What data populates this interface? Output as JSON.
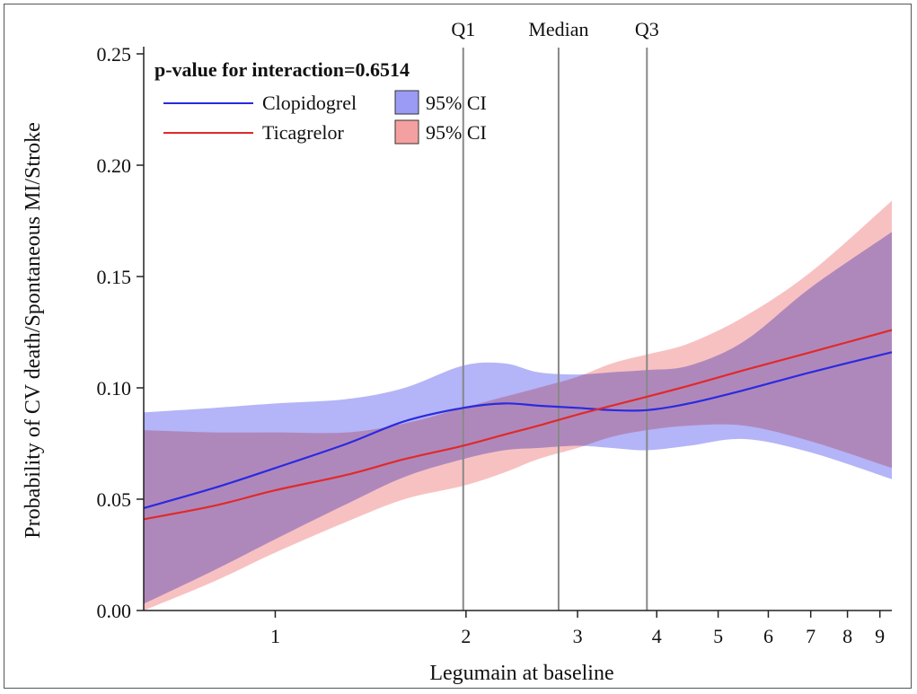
{
  "chart_data": {
    "type": "line",
    "x_scale": "log",
    "xlabel": "Legumain at baseline",
    "ylabel": "Probability of CV death/Spontaneous MI/Stroke",
    "xlim": [
      0.62,
      9.4
    ],
    "ylim": [
      0,
      0.25
    ],
    "x_ticks": [
      1,
      2,
      3,
      4,
      5,
      6,
      7,
      8,
      9
    ],
    "y_ticks": [
      0.0,
      0.05,
      0.1,
      0.15,
      0.2,
      0.25
    ],
    "y_tick_labels": [
      "0.00",
      "0.05",
      "0.10",
      "0.15",
      "0.20",
      "0.25"
    ],
    "grid": false,
    "legend_position": "top-left",
    "annotation": "p-value for interaction=0.6514",
    "reference_lines": [
      {
        "label": "Q1",
        "x": 1.98
      },
      {
        "label": "Median",
        "x": 2.8
      },
      {
        "label": "Q3",
        "x": 3.86
      }
    ],
    "series": [
      {
        "name": "Clopidogrel",
        "ci_name": "95% CI",
        "line_color": "#2a2ae0",
        "band_color": "#9b9bf5",
        "x": [
          0.62,
          0.8,
          1.0,
          1.3,
          1.6,
          1.98,
          2.3,
          2.6,
          3.0,
          3.4,
          3.86,
          4.5,
          5.5,
          7.0,
          9.4
        ],
        "y": [
          0.046,
          0.055,
          0.064,
          0.075,
          0.085,
          0.091,
          0.093,
          0.092,
          0.091,
          0.09,
          0.09,
          0.093,
          0.099,
          0.107,
          0.116
        ],
        "lower": [
          0.003,
          0.018,
          0.032,
          0.048,
          0.06,
          0.068,
          0.072,
          0.073,
          0.074,
          0.073,
          0.072,
          0.074,
          0.077,
          0.071,
          0.059
        ],
        "upper": [
          0.089,
          0.091,
          0.093,
          0.095,
          0.1,
          0.11,
          0.111,
          0.107,
          0.106,
          0.107,
          0.108,
          0.11,
          0.121,
          0.145,
          0.17
        ]
      },
      {
        "name": "Ticagrelor",
        "ci_name": "95% CI",
        "line_color": "#e02a2a",
        "band_color": "#f5a0a0",
        "x": [
          0.62,
          0.8,
          1.0,
          1.3,
          1.6,
          1.98,
          2.3,
          2.6,
          3.0,
          3.4,
          3.86,
          4.5,
          5.5,
          7.0,
          9.4
        ],
        "y": [
          0.041,
          0.047,
          0.054,
          0.061,
          0.068,
          0.074,
          0.079,
          0.083,
          0.088,
          0.092,
          0.096,
          0.101,
          0.108,
          0.116,
          0.126
        ],
        "lower": [
          0.0,
          0.013,
          0.026,
          0.04,
          0.05,
          0.056,
          0.062,
          0.068,
          0.073,
          0.078,
          0.081,
          0.083,
          0.083,
          0.076,
          0.064
        ],
        "upper": [
          0.081,
          0.08,
          0.08,
          0.08,
          0.084,
          0.091,
          0.096,
          0.1,
          0.105,
          0.111,
          0.115,
          0.12,
          0.132,
          0.152,
          0.184
        ]
      }
    ]
  }
}
